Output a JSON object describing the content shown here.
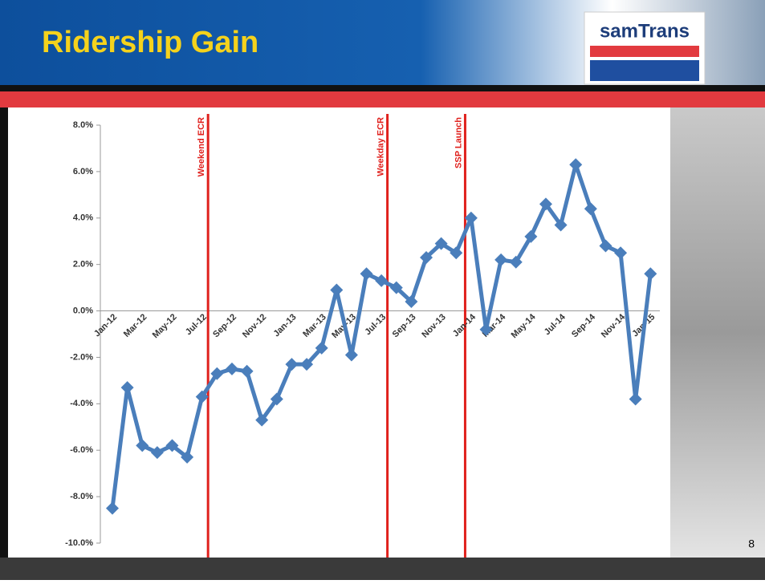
{
  "slide": {
    "title": "Ridership Gain",
    "logo": "samTrans",
    "page_number": "8"
  },
  "chart_data": {
    "type": "line",
    "categories": [
      "Jan-12",
      null,
      "Mar-12",
      null,
      "May-12",
      null,
      "Jul-12",
      null,
      "Sep-12",
      null,
      "Nov-12",
      null,
      "Jan-13",
      null,
      "Mar-13",
      null,
      "May-13",
      null,
      "Jul-13",
      null,
      "Sep-13",
      null,
      "Nov-13",
      null,
      "Jan-14",
      null,
      "Mar-14",
      null,
      "May-14",
      null,
      "Jul-14",
      null,
      "Sep-14",
      null,
      "Nov-14",
      null,
      "Jan-15"
    ],
    "series": [
      {
        "color": "#4a7ebb",
        "values": [
          -8.5,
          -3.3,
          -5.8,
          -6.1,
          -5.8,
          -6.3,
          -3.7,
          -2.7,
          -2.5,
          -2.6,
          -4.7,
          -3.8,
          -2.3,
          -2.3,
          -1.6,
          0.9,
          -1.9,
          1.6,
          1.3,
          1.0,
          0.4,
          2.3,
          2.9,
          2.5,
          4.0,
          -0.8,
          2.2,
          2.1,
          3.2,
          4.6,
          3.7,
          6.3,
          4.4,
          2.8,
          2.5,
          -3.8,
          1.6
        ]
      }
    ],
    "ylim": [
      -10,
      8
    ],
    "yticks": [
      {
        "value": -10,
        "label": "-10.0%"
      },
      {
        "value": -8,
        "label": "-8.0%"
      },
      {
        "value": -6,
        "label": "-6.0%"
      },
      {
        "value": -4,
        "label": "-4.0%"
      },
      {
        "value": -2,
        "label": "-2.0%"
      },
      {
        "value": 0,
        "label": "0.0%"
      },
      {
        "value": 2,
        "label": "2.0%"
      },
      {
        "value": 4,
        "label": "4.0%"
      },
      {
        "value": 6,
        "label": "6.0%"
      },
      {
        "value": 8,
        "label": "8.0%"
      }
    ],
    "annotations": [
      {
        "text": "Weekend ECR",
        "x": 6.4,
        "color": "#e0201c"
      },
      {
        "text": "Weekday ECR",
        "x": 18.4,
        "color": "#e0201c"
      },
      {
        "text": "SSP Launch",
        "x": 23.6,
        "color": "#e0201c"
      }
    ]
  }
}
